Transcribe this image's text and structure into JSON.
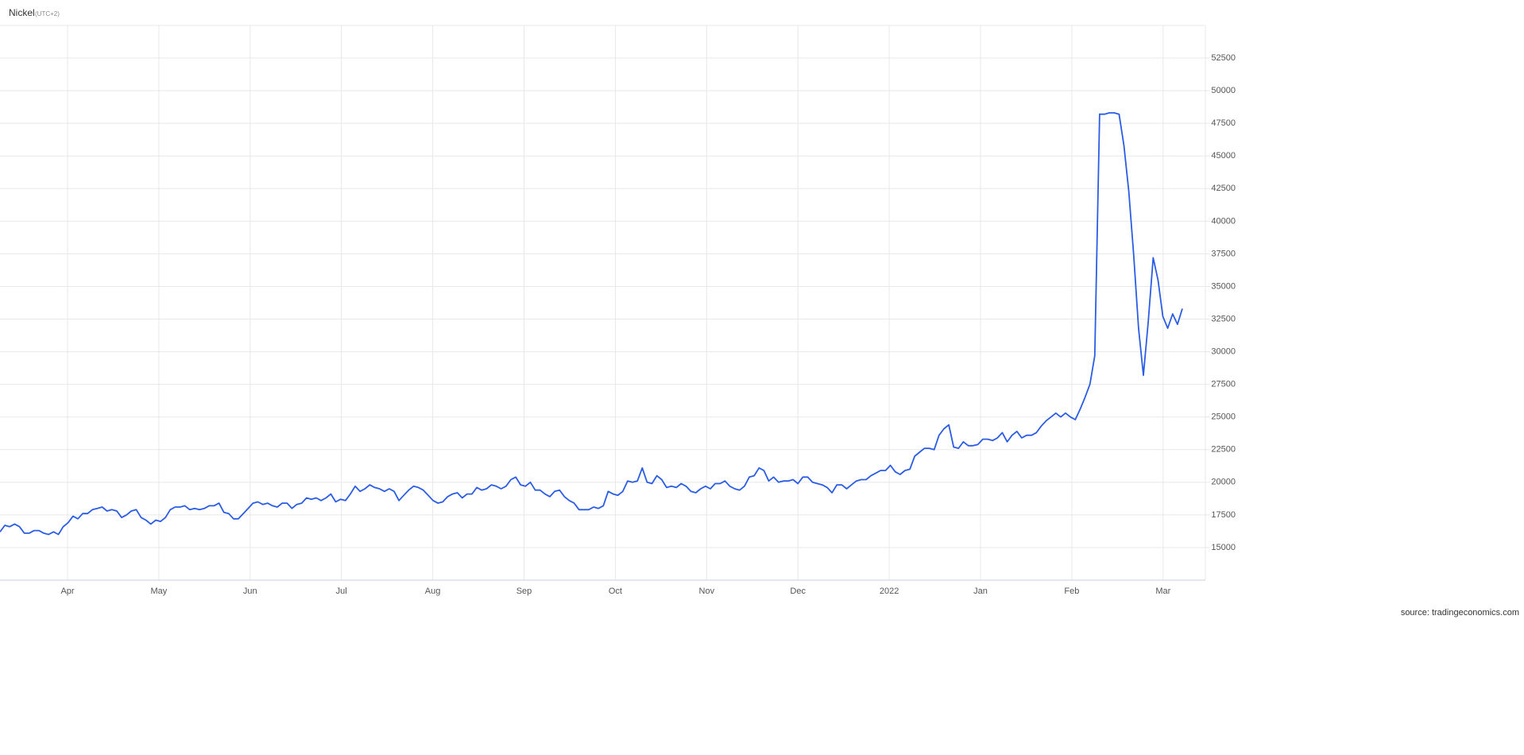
{
  "chart_data": {
    "type": "line",
    "title": "Nickel",
    "subtitle": "(UTC+2)",
    "source": "source: tradingeconomics.com",
    "xticks": [
      "Apr",
      "May",
      "Jun",
      "Jul",
      "Aug",
      "Sep",
      "Oct",
      "Nov",
      "Dec",
      "2022",
      "Jan",
      "Feb",
      "Mar"
    ],
    "ylim": [
      12500,
      55000
    ],
    "yticks": [
      15000,
      17500,
      20000,
      22500,
      25000,
      27500,
      30000,
      32500,
      35000,
      37500,
      40000,
      42500,
      45000,
      47500,
      50000,
      52500
    ],
    "grid": true,
    "series": [
      {
        "color": "#2b5ce6",
        "values": [
          16200,
          16700,
          16600,
          16800,
          16600,
          16100,
          16100,
          16300,
          16300,
          16100,
          16000,
          16200,
          16000,
          16600,
          16900,
          17400,
          17200,
          17600,
          17600,
          17900,
          18000,
          18100,
          17800,
          17900,
          17800,
          17300,
          17500,
          17800,
          17900,
          17300,
          17100,
          16800,
          17100,
          17000,
          17300,
          17900,
          18100,
          18100,
          18200,
          17900,
          18000,
          17900,
          18000,
          18200,
          18200,
          18400,
          17700,
          17600,
          17200,
          17200,
          17600,
          18000,
          18400,
          18500,
          18300,
          18400,
          18200,
          18100,
          18400,
          18400,
          18000,
          18300,
          18400,
          18800,
          18700,
          18800,
          18600,
          18800,
          19100,
          18500,
          18700,
          18600,
          19100,
          19700,
          19300,
          19500,
          19800,
          19600,
          19500,
          19300,
          19500,
          19300,
          18600,
          19000,
          19400,
          19700,
          19600,
          19400,
          19000,
          18600,
          18400,
          18500,
          18900,
          19100,
          19200,
          18800,
          19100,
          19100,
          19600,
          19400,
          19500,
          19800,
          19700,
          19500,
          19700,
          20200,
          20400,
          19800,
          19700,
          20000,
          19400,
          19400,
          19100,
          18900,
          19300,
          19400,
          18900,
          18600,
          18400,
          17900,
          17900,
          17900,
          18100,
          18000,
          18200,
          19300,
          19100,
          19000,
          19300,
          20100,
          20000,
          20100,
          21100,
          20000,
          19900,
          20500,
          20200,
          19600,
          19700,
          19600,
          19900,
          19700,
          19300,
          19200,
          19500,
          19700,
          19500,
          19900,
          19900,
          20100,
          19700,
          19500,
          19400,
          19700,
          20400,
          20500,
          21100,
          20900,
          20100,
          20400,
          20000,
          20100,
          20100,
          20200,
          19900,
          20400,
          20400,
          20000,
          19900,
          19800,
          19600,
          19200,
          19800,
          19800,
          19500,
          19800,
          20100,
          20200,
          20200,
          20500,
          20700,
          20900,
          20900,
          21300,
          20800,
          20600,
          20900,
          21000,
          22000,
          22300,
          22600,
          22600,
          22500,
          23600,
          24100,
          24400,
          22700,
          22600,
          23100,
          22800,
          22800,
          22900,
          23300,
          23300,
          23200,
          23400,
          23800,
          23100,
          23600,
          23900,
          23400,
          23600,
          23600,
          23800,
          24300,
          24700,
          25000,
          25300,
          25000,
          25300,
          25000,
          24800,
          25600,
          26500,
          27500,
          29700,
          48200,
          48200,
          48300,
          48300,
          48200,
          45800,
          42300,
          37400,
          31800,
          28200,
          32300,
          37200,
          35500,
          32700,
          31800,
          32900,
          32100,
          33300
        ]
      }
    ]
  }
}
